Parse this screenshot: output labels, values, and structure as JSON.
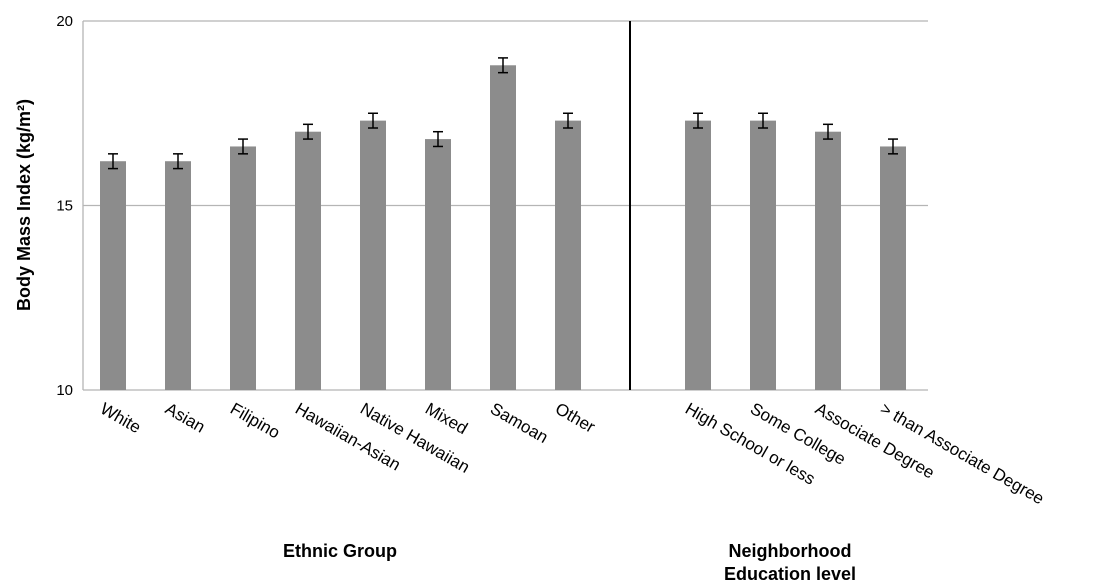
{
  "chart_data": {
    "type": "bar",
    "ylabel": "Body Mass Index (kg/m²)",
    "ylim": [
      10,
      20
    ],
    "yticks": [
      "10",
      "15",
      "20"
    ],
    "grid": true,
    "bar_color": "#8c8c8c",
    "groups": [
      {
        "label": "Ethnic Group",
        "label_lines": [
          "Ethnic Group"
        ]
      },
      {
        "label": "Neighborhood Education level",
        "label_lines": [
          "Neighborhood",
          "Education level"
        ]
      }
    ],
    "categories": [
      "White",
      "Asian",
      "Filipino",
      "Hawaiian-Asian",
      "Native Hawaiian",
      "Mixed",
      "Samoan",
      "Other",
      "High School or less",
      "Some College",
      "Associate Degree",
      "> than Associate Degree"
    ],
    "category_group": [
      0,
      0,
      0,
      0,
      0,
      0,
      0,
      0,
      1,
      1,
      1,
      1
    ],
    "values": [
      16.2,
      16.2,
      16.6,
      17.0,
      17.3,
      16.8,
      18.8,
      17.3,
      17.3,
      17.3,
      17.0,
      16.6
    ],
    "error": [
      0.2,
      0.2,
      0.2,
      0.2,
      0.2,
      0.2,
      0.2,
      0.2,
      0.2,
      0.2,
      0.2,
      0.2
    ]
  }
}
